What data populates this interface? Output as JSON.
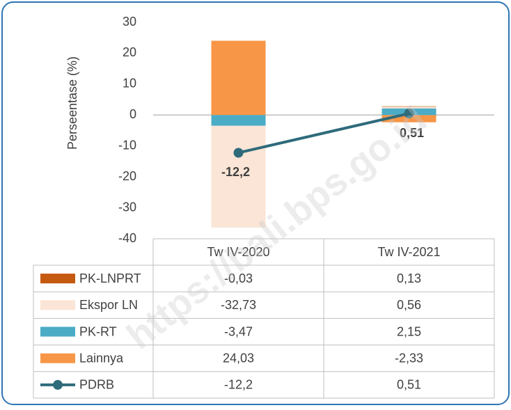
{
  "chart_data": {
    "type": "bar",
    "y_label": "Perseentase (%)",
    "watermark": "https://bali.bps.go.id",
    "categories": [
      "Tw IV-2020",
      "Tw IV-2021"
    ],
    "ylim": [
      -40,
      30
    ],
    "yticks": [
      30,
      20,
      10,
      0,
      -10,
      -20,
      -30,
      -40
    ],
    "grid": false,
    "series": [
      {
        "name": "PK-LNPRT",
        "type": "bar",
        "color": "#c55a11",
        "values": [
          -0.03,
          0.13
        ],
        "value_labels": [
          "-0,03",
          "0,13"
        ]
      },
      {
        "name": "Ekspor LN",
        "type": "bar",
        "color": "#fbe5d6",
        "values": [
          -32.73,
          0.56
        ],
        "value_labels": [
          "-32,73",
          "0,56"
        ]
      },
      {
        "name": "PK-RT",
        "type": "bar",
        "color": "#4bacc6",
        "values": [
          -3.47,
          2.15
        ],
        "value_labels": [
          "-3,47",
          "2,15"
        ]
      },
      {
        "name": "Lainnya",
        "type": "bar",
        "color": "#f79646",
        "values": [
          24.03,
          -2.33
        ],
        "value_labels": [
          "24,03",
          "-2,33"
        ]
      },
      {
        "name": "PDRB",
        "type": "line",
        "color": "#2e6b7b",
        "values": [
          -12.2,
          0.51
        ],
        "value_labels": [
          "-12,2",
          "0,51"
        ]
      }
    ]
  }
}
